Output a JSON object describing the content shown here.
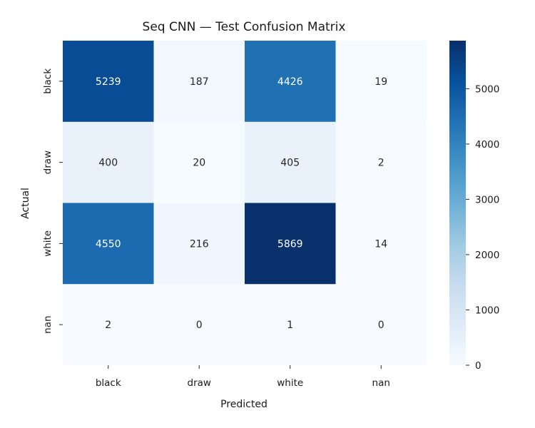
{
  "chart_data": {
    "type": "heatmap",
    "title": "Seq CNN — Test Confusion Matrix",
    "xlabel": "Predicted",
    "ylabel": "Actual",
    "x_categories": [
      "black",
      "draw",
      "white",
      "nan"
    ],
    "y_categories": [
      "black",
      "draw",
      "white",
      "nan"
    ],
    "values": [
      [
        5239,
        187,
        4426,
        19
      ],
      [
        400,
        20,
        405,
        2
      ],
      [
        4550,
        216,
        5869,
        14
      ],
      [
        2,
        0,
        1,
        0
      ]
    ],
    "colorscale": "Blues",
    "vmin": 0,
    "vmax": 5869,
    "colorbar_ticks": [
      0,
      1000,
      2000,
      3000,
      4000,
      5000
    ],
    "grid": false
  }
}
